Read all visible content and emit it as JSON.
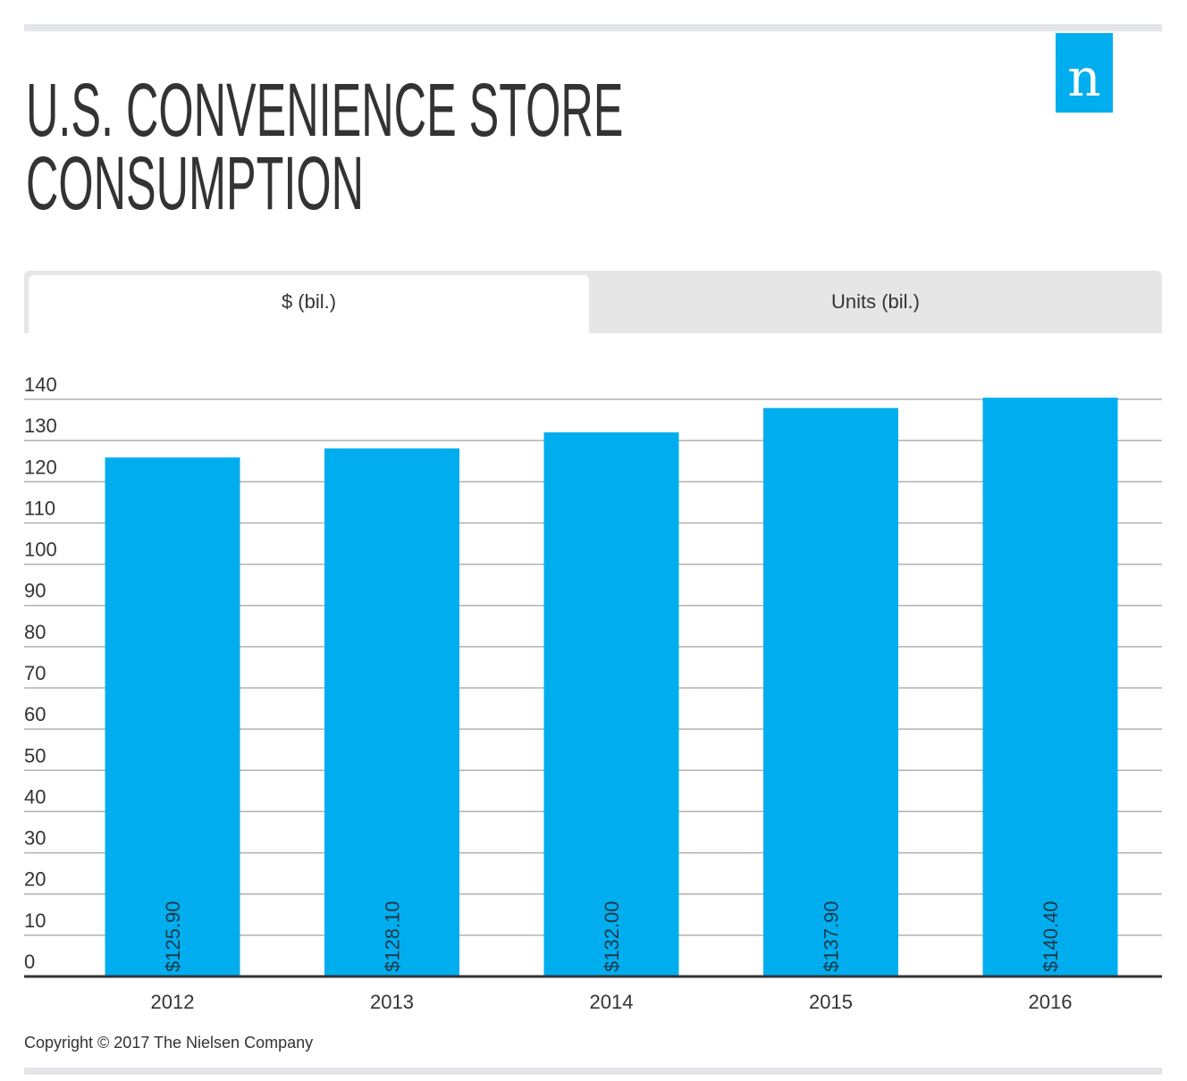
{
  "logo_text": "n",
  "title_line1": "U.S. CONVENIENCE STORE",
  "title_line2": "CONSUMPTION",
  "tabs": [
    {
      "label": "$ (bil.)",
      "active": true
    },
    {
      "label": "Units (bil.)",
      "active": false
    }
  ],
  "footer": "Copyright © 2017 The Nielsen Company",
  "colors": {
    "bar": "#00aeef",
    "grid": "#b0b0b0",
    "axis": "#333333"
  },
  "chart_data": {
    "type": "bar",
    "categories": [
      "2012",
      "2013",
      "2014",
      "2015",
      "2016"
    ],
    "values": [
      125.9,
      128.1,
      132.0,
      137.9,
      140.4
    ],
    "data_labels": [
      "$125.90",
      "$128.10",
      "$132.00",
      "$137.90",
      "$140.40"
    ],
    "yticks": [
      0,
      10,
      20,
      30,
      40,
      50,
      60,
      70,
      80,
      90,
      100,
      110,
      120,
      130,
      140
    ],
    "ylim": [
      0,
      140
    ],
    "grid": true,
    "title": "",
    "xlabel": "",
    "ylabel": ""
  }
}
